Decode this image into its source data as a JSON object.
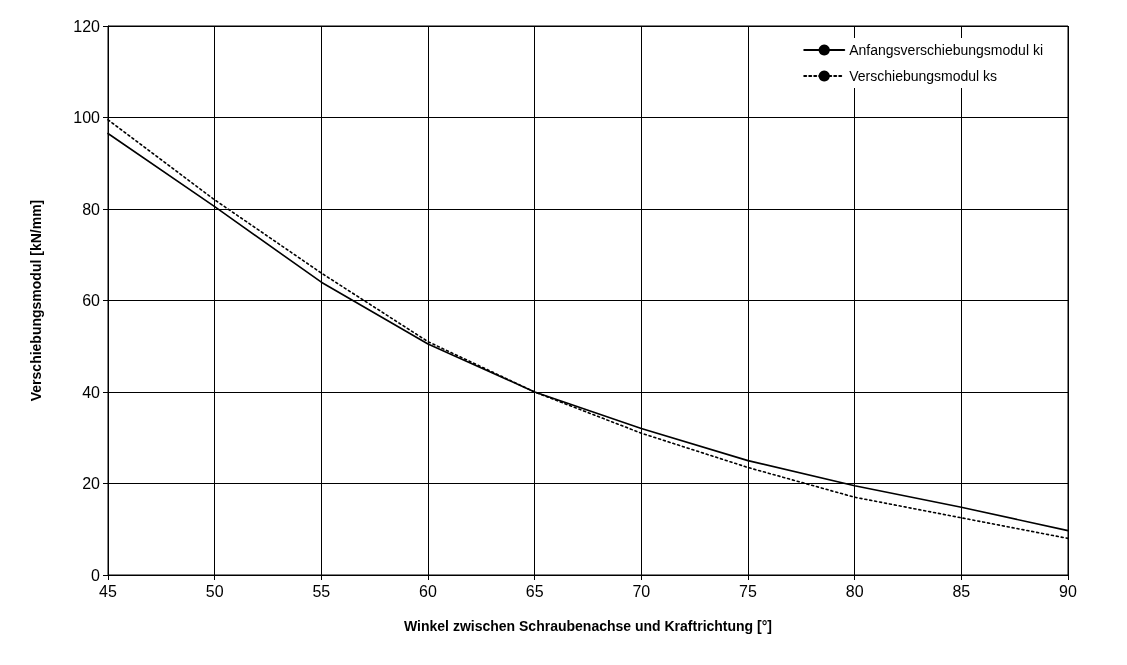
{
  "chart_data": {
    "type": "line",
    "xlabel": "Winkel zwischen Schraubenachse und Kraftrichtung [°]",
    "ylabel": "Verschiebungsmodul [kN/mm]",
    "x": [
      45,
      50,
      55,
      60,
      65,
      70,
      75,
      80,
      85,
      90
    ],
    "series": [
      {
        "name": "Anfangsverschiebungsmodul ki",
        "color": "#000000",
        "line_style": "solid",
        "values": [
          96.5,
          80.5,
          64,
          50.5,
          40,
          32,
          25,
          19.5,
          14.8,
          9.7
        ]
      },
      {
        "name": "Verschiebungsmodul ks",
        "color": "#000000",
        "line_style": "dotted",
        "values": [
          99.5,
          82,
          66,
          51,
          40,
          31,
          23.5,
          17,
          12.5,
          8
        ]
      }
    ],
    "xlim": [
      45,
      90
    ],
    "xticks": [
      45,
      50,
      55,
      60,
      65,
      70,
      75,
      80,
      85,
      90
    ],
    "ylim": [
      0,
      120
    ],
    "yticks": [
      0,
      20,
      40,
      60,
      80,
      100,
      120
    ],
    "grid": true,
    "legend": "top right",
    "marker": "none"
  }
}
